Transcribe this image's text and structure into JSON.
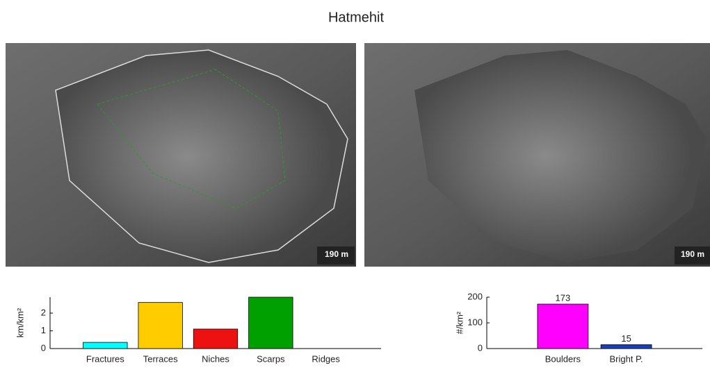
{
  "title": "Hatmehit",
  "images": [
    {
      "scale_label": "190 m"
    },
    {
      "scale_label": "190 m"
    }
  ],
  "chart_data": [
    {
      "type": "bar",
      "ylabel": "km/km²",
      "categories": [
        "Fractures",
        "Terraces",
        "Niches",
        "Scarps",
        "Ridges"
      ],
      "values": [
        0.35,
        2.6,
        1.1,
        2.9,
        0
      ],
      "colors": [
        "#00ffff",
        "#ffcc00",
        "#ee1111",
        "#00a000",
        "#0000ff"
      ],
      "ylim": [
        0,
        2.9
      ],
      "yticks": [
        0,
        1,
        2
      ]
    },
    {
      "type": "bar",
      "ylabel": "#/km²",
      "categories": [
        "Boulders",
        "Bright P."
      ],
      "values": [
        173,
        15
      ],
      "data_labels": true,
      "colors": [
        "#ff00ff",
        "#1a3fbf"
      ],
      "ylim": [
        0,
        200
      ],
      "yticks": [
        0,
        100,
        200
      ]
    }
  ]
}
